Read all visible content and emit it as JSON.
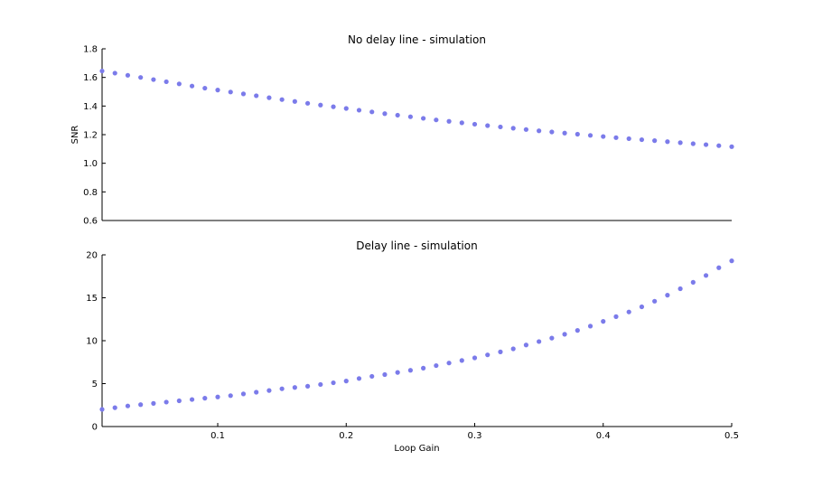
{
  "chart_data": [
    {
      "type": "scatter",
      "title": "No delay line - simulation",
      "xlabel": "",
      "ylabel": "SNR",
      "xlim": [
        0.01,
        0.5
      ],
      "ylim": [
        0.6,
        1.8
      ],
      "yticks": [
        0.6,
        0.8,
        1.0,
        1.2,
        1.4,
        1.6,
        1.8
      ],
      "ytick_labels": [
        "0.6",
        "0.8",
        "1.0",
        "1.2",
        "1.4",
        "1.6",
        "1.8"
      ],
      "xticks": [],
      "xtick_labels": [],
      "grid": false,
      "marker_color": "#7b7bea",
      "series": [
        {
          "x": [
            0.01,
            0.02,
            0.03,
            0.04,
            0.05,
            0.06,
            0.07,
            0.08,
            0.09,
            0.1,
            0.11,
            0.12,
            0.13,
            0.14,
            0.15,
            0.16,
            0.17,
            0.18,
            0.19,
            0.2,
            0.21,
            0.22,
            0.23,
            0.24,
            0.25,
            0.26,
            0.27,
            0.28,
            0.29,
            0.3,
            0.31,
            0.32,
            0.33,
            0.34,
            0.35,
            0.36,
            0.37,
            0.38,
            0.39,
            0.4,
            0.41,
            0.42,
            0.43,
            0.44,
            0.45,
            0.46,
            0.47,
            0.48,
            0.49,
            0.5
          ],
          "y": [
            1.645,
            1.63,
            1.615,
            1.6,
            1.585,
            1.57,
            1.555,
            1.54,
            1.525,
            1.512,
            1.498,
            1.485,
            1.472,
            1.458,
            1.445,
            1.432,
            1.419,
            1.407,
            1.395,
            1.383,
            1.371,
            1.359,
            1.347,
            1.336,
            1.325,
            1.314,
            1.303,
            1.293,
            1.283,
            1.273,
            1.263,
            1.254,
            1.245,
            1.236,
            1.227,
            1.219,
            1.211,
            1.203,
            1.195,
            1.187,
            1.179,
            1.172,
            1.165,
            1.158,
            1.151,
            1.144,
            1.137,
            1.13,
            1.123,
            1.116
          ]
        }
      ]
    },
    {
      "type": "scatter",
      "title": "Delay line - simulation",
      "xlabel": "Loop Gain",
      "ylabel": "",
      "xlim": [
        0.01,
        0.5
      ],
      "ylim": [
        0,
        20
      ],
      "yticks": [
        0,
        5,
        10,
        15,
        20
      ],
      "ytick_labels": [
        "0",
        "5",
        "10",
        "15",
        "20"
      ],
      "xticks": [
        0.1,
        0.2,
        0.3,
        0.4,
        0.5
      ],
      "xtick_labels": [
        "0.1",
        "0.2",
        "0.3",
        "0.4",
        "0.5"
      ],
      "grid": false,
      "marker_color": "#7b7bea",
      "series": [
        {
          "x": [
            0.01,
            0.02,
            0.03,
            0.04,
            0.05,
            0.06,
            0.07,
            0.08,
            0.09,
            0.1,
            0.11,
            0.12,
            0.13,
            0.14,
            0.15,
            0.16,
            0.17,
            0.18,
            0.19,
            0.2,
            0.21,
            0.22,
            0.23,
            0.24,
            0.25,
            0.26,
            0.27,
            0.28,
            0.29,
            0.3,
            0.31,
            0.32,
            0.33,
            0.34,
            0.35,
            0.36,
            0.37,
            0.38,
            0.39,
            0.4,
            0.41,
            0.42,
            0.43,
            0.44,
            0.45,
            0.46,
            0.47,
            0.48,
            0.49,
            0.5
          ],
          "y": [
            2.0,
            2.2,
            2.4,
            2.55,
            2.7,
            2.85,
            3.0,
            3.15,
            3.3,
            3.45,
            3.6,
            3.8,
            4.0,
            4.2,
            4.4,
            4.55,
            4.7,
            4.9,
            5.1,
            5.3,
            5.6,
            5.85,
            6.05,
            6.3,
            6.55,
            6.8,
            7.1,
            7.4,
            7.7,
            8.0,
            8.35,
            8.7,
            9.05,
            9.5,
            9.9,
            10.3,
            10.75,
            11.2,
            11.7,
            12.25,
            12.8,
            13.35,
            13.95,
            14.6,
            15.3,
            16.05,
            16.8,
            17.6,
            18.5,
            19.3
          ]
        }
      ]
    }
  ]
}
